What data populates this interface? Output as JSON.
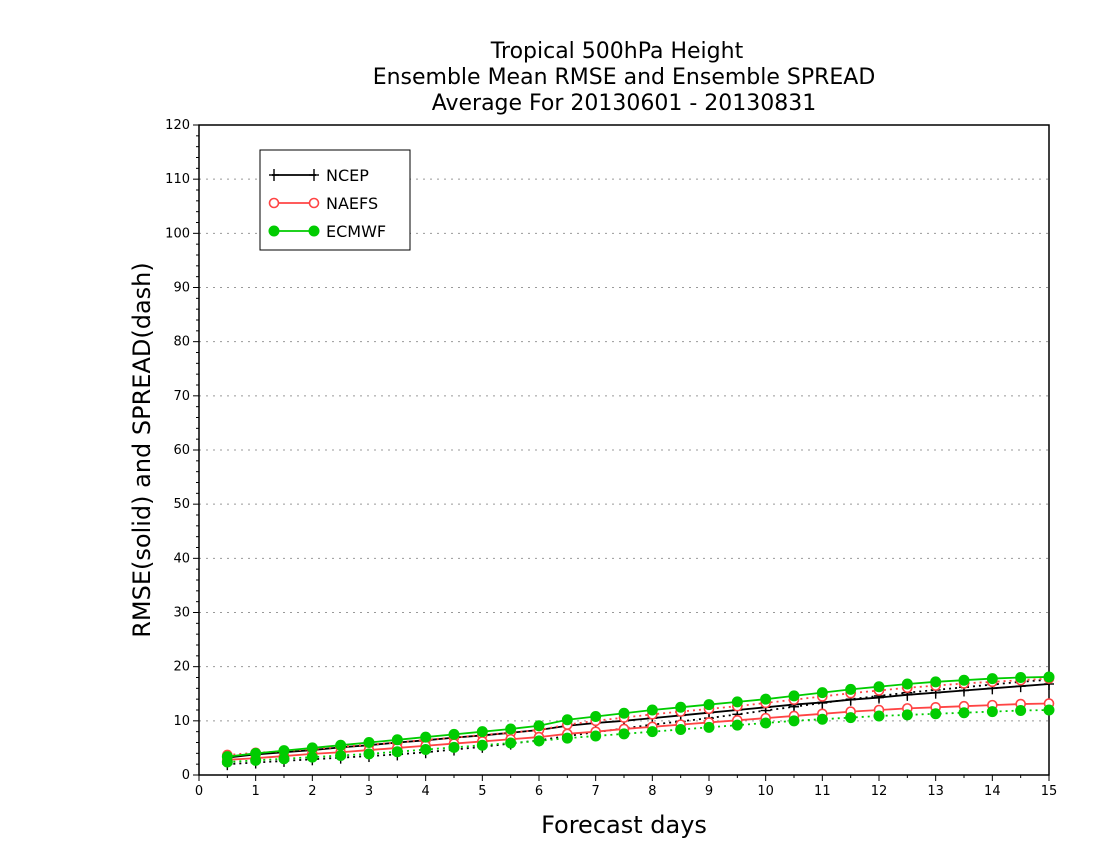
{
  "chart_data": {
    "type": "line",
    "title": [
      "Tropical 500hPa Height",
      "Ensemble Mean RMSE and Ensemble SPREAD",
      "Average For 20130601 - 20130831"
    ],
    "xlabel": "Forecast days",
    "ylabel": "RMSE(solid) and SPREAD(dash)",
    "xlim": [
      0,
      15
    ],
    "ylim": [
      0,
      120
    ],
    "xticks": [
      0,
      1,
      2,
      3,
      4,
      5,
      6,
      7,
      8,
      9,
      10,
      11,
      12,
      13,
      14,
      15
    ],
    "yticks": [
      0,
      10,
      20,
      30,
      40,
      50,
      60,
      70,
      80,
      90,
      100,
      110,
      120
    ],
    "grid": true,
    "legend_position": "top-left",
    "x": [
      0.5,
      1,
      1.5,
      2,
      2.5,
      3,
      3.5,
      4,
      4.5,
      5,
      5.5,
      6,
      6.5,
      7,
      7.5,
      8,
      8.5,
      9,
      9.5,
      10,
      10.5,
      11,
      11.5,
      12,
      12.5,
      13,
      13.5,
      14,
      14.5,
      15
    ],
    "series": [
      {
        "name": "NCEP",
        "color": "#000000",
        "marker": "plus",
        "rmse": [
          3.2,
          3.8,
          4.2,
          4.6,
          5.1,
          5.5,
          6.0,
          6.4,
          6.9,
          7.3,
          7.8,
          8.3,
          9.1,
          9.6,
          10.0,
          10.5,
          11.0,
          11.5,
          12.0,
          12.5,
          13.0,
          13.4,
          13.9,
          14.3,
          14.8,
          15.2,
          15.6,
          16.0,
          16.4,
          16.8
        ],
        "spread": [
          2.0,
          2.3,
          2.6,
          2.9,
          3.2,
          3.5,
          3.8,
          4.2,
          4.7,
          5.2,
          5.8,
          6.4,
          7.2,
          7.9,
          8.6,
          9.3,
          9.9,
          10.5,
          11.2,
          11.9,
          12.6,
          13.3,
          14.0,
          14.6,
          15.2,
          15.7,
          16.2,
          16.7,
          17.2,
          17.6
        ]
      },
      {
        "name": "NAEFS",
        "color": "#ff4444",
        "marker": "circle-open",
        "rmse": [
          2.8,
          3.1,
          3.5,
          3.9,
          4.2,
          4.6,
          5.0,
          5.4,
          5.8,
          6.2,
          6.6,
          7.0,
          7.6,
          8.0,
          8.5,
          8.9,
          9.3,
          9.7,
          10.1,
          10.5,
          10.9,
          11.3,
          11.7,
          12.0,
          12.3,
          12.5,
          12.7,
          12.9,
          13.1,
          13.2
        ],
        "spread": [
          3.7,
          4.1,
          4.4,
          4.8,
          5.2,
          5.6,
          6.0,
          6.5,
          6.9,
          7.4,
          7.8,
          8.3,
          9.3,
          10.0,
          10.6,
          11.2,
          11.7,
          12.2,
          12.7,
          13.3,
          13.9,
          14.5,
          15.1,
          15.6,
          16.1,
          16.5,
          16.9,
          17.2,
          17.5,
          17.8
        ]
      },
      {
        "name": "ECMWF",
        "color": "#00cc00",
        "marker": "circle-filled",
        "rmse": [
          3.4,
          4.0,
          4.5,
          5.0,
          5.5,
          6.0,
          6.5,
          7.0,
          7.5,
          8.0,
          8.5,
          9.1,
          10.2,
          10.8,
          11.4,
          12.0,
          12.5,
          13.0,
          13.5,
          14.0,
          14.6,
          15.2,
          15.8,
          16.3,
          16.8,
          17.2,
          17.5,
          17.8,
          18.0,
          18.1
        ],
        "spread": [
          2.4,
          2.7,
          3.0,
          3.3,
          3.6,
          3.9,
          4.3,
          4.7,
          5.1,
          5.5,
          5.9,
          6.3,
          6.8,
          7.2,
          7.6,
          8.0,
          8.4,
          8.8,
          9.2,
          9.6,
          10.0,
          10.3,
          10.6,
          10.9,
          11.1,
          11.3,
          11.5,
          11.7,
          11.9,
          12.0
        ]
      }
    ]
  }
}
